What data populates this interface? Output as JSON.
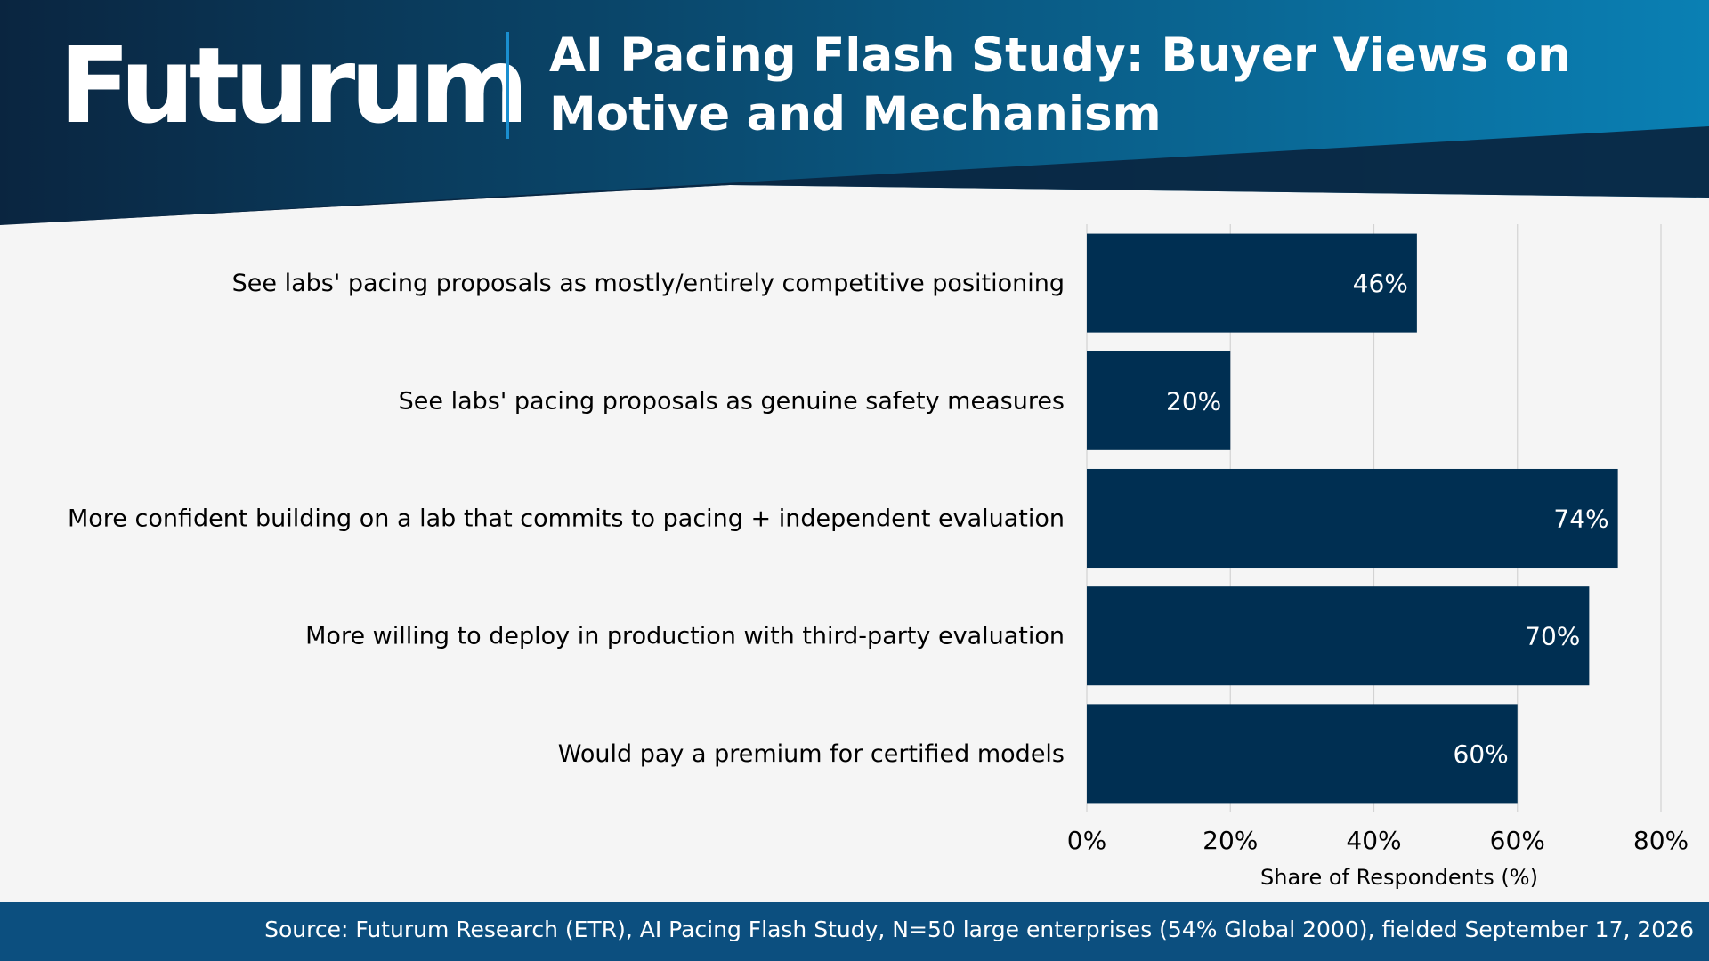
{
  "brand": {
    "logo_text": "Futurum"
  },
  "header": {
    "title": "AI Pacing Flash Study: Buyer Views on Motive and Mechanism"
  },
  "colors": {
    "bar": "#002f52",
    "header_dark": "#0a2540",
    "header_light": "#0a80b4",
    "footer": "#0c4f7f",
    "grid": "#d3d3d3"
  },
  "chart_data": {
    "type": "bar",
    "orientation": "horizontal",
    "categories": [
      "See labs' pacing proposals as mostly/entirely competitive positioning",
      "See labs' pacing proposals as genuine safety measures",
      "More confident building on a lab that commits to pacing + independent evaluation",
      "More willing to deploy in production with third-party evaluation",
      "Would pay a premium for certified models"
    ],
    "values": [
      46,
      20,
      74,
      70,
      60
    ],
    "value_labels": [
      "46%",
      "20%",
      "74%",
      "70%",
      "60%"
    ],
    "xlabel": "Share of Respondents (%)",
    "ylabel": "",
    "xlim": [
      0,
      80
    ],
    "xticks": [
      0,
      20,
      40,
      60,
      80
    ],
    "xtick_labels": [
      "0%",
      "20%",
      "40%",
      "60%",
      "80%"
    ],
    "grid": "vertical"
  },
  "footer": {
    "source": "Source: Futurum Research (ETR), AI Pacing Flash Study, N=50 large enterprises (54% Global 2000), fielded September 17, 2026"
  }
}
